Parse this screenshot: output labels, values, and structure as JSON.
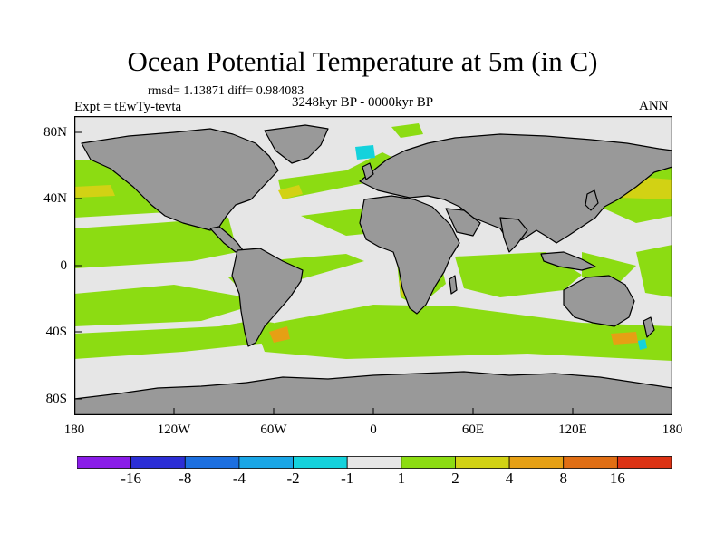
{
  "title": "Ocean Potential Temperature at 5m (in C)",
  "stats": "rmsd= 1.13871  diff= 0.984083",
  "experiment": "Expt = tEwTy-tevta",
  "period": "3248kyr BP - 0000kyr BP",
  "season": "ANN",
  "latitude_labels": [
    "80N",
    "40N",
    "0",
    "40S",
    "80S"
  ],
  "longitude_labels": [
    "180",
    "120W",
    "60W",
    "0",
    "60E",
    "120E",
    "180"
  ],
  "colorbar": {
    "labels": [
      "-16",
      "-8",
      "-4",
      "-2",
      "-1",
      "1",
      "2",
      "4",
      "8",
      "16"
    ],
    "colors": [
      "#8a1ce8",
      "#2c2ed6",
      "#1c6fe0",
      "#1aa6e6",
      "#14d2dc",
      "#e6e6e6",
      "#8cdc12",
      "#d2d214",
      "#e6a014",
      "#e06e14",
      "#dc3214"
    ]
  },
  "map_colors": {
    "land": "#999999",
    "no_change": "#e6e6e6",
    "warm1": "#8cdc12",
    "warm2": "#d2d214",
    "warm3": "#e6a014",
    "cool1": "#14d2dc",
    "cool2": "#1aa6e6"
  }
}
